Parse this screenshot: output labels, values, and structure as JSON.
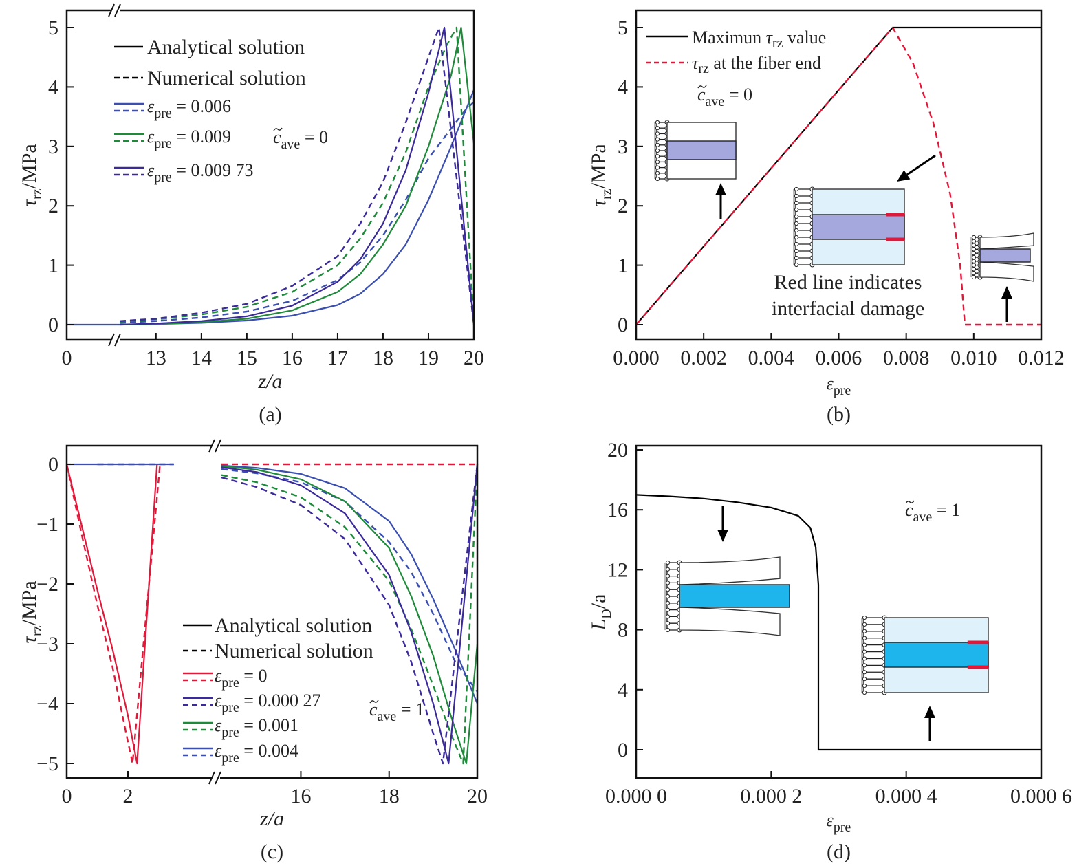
{
  "figure": {
    "panels": [
      "a",
      "b",
      "c",
      "d"
    ]
  },
  "chart_data": [
    {
      "panel": "a",
      "type": "line",
      "caption": "(a)",
      "xlabel": "z/a",
      "ylabel": "τrz/MPa",
      "xlim": [
        0,
        20
      ],
      "x_axis_break": "between 0 and 13",
      "ylim": [
        -0.25,
        5.25
      ],
      "xticks": [
        "0",
        "13",
        "14",
        "15",
        "16",
        "17",
        "18",
        "19",
        "20"
      ],
      "yticks": [
        "0",
        "1",
        "2",
        "3",
        "4",
        "5"
      ],
      "legend_position": "top-left",
      "legend": [
        {
          "label": "Analytical solution",
          "style": "solid",
          "color": "#000000"
        },
        {
          "label": "Numerical solution",
          "style": "dashed",
          "color": "#000000"
        },
        {
          "label": "εpre = 0.006",
          "color": "#3a4fb0"
        },
        {
          "label": "εpre = 0.009",
          "color": "#1f8a3a"
        },
        {
          "label": "εpre = 0.009 73",
          "color": "#3a2a9a"
        }
      ],
      "annotation": "c̃ave = 0",
      "series": [
        {
          "name": "εpre=0.006 analytical",
          "color": "#3a4fb0",
          "style": "solid",
          "x": [
            0,
            12.0,
            12.2,
            13,
            14,
            15,
            16,
            17,
            17.5,
            18,
            18.5,
            19,
            19.5,
            20
          ],
          "y": [
            0,
            0,
            0.0,
            0.01,
            0.03,
            0.07,
            0.15,
            0.33,
            0.52,
            0.85,
            1.35,
            2.1,
            3.0,
            3.95
          ]
        },
        {
          "name": "εpre=0.006 numerical",
          "color": "#3a4fb0",
          "style": "dashed",
          "x": [
            12.2,
            13,
            14,
            15,
            16,
            17,
            17.5,
            18,
            18.5,
            19,
            19.5,
            19.8,
            20
          ],
          "y": [
            0.03,
            0.06,
            0.12,
            0.22,
            0.4,
            0.75,
            1.05,
            1.5,
            2.1,
            2.8,
            3.3,
            3.6,
            3.75
          ]
        },
        {
          "name": "εpre=0.009 analytical",
          "color": "#1f8a3a",
          "style": "solid",
          "x": [
            12.2,
            13,
            14,
            15,
            16,
            17,
            17.5,
            18,
            18.5,
            19,
            19.5,
            19.72,
            20
          ],
          "y": [
            0.0,
            0.01,
            0.04,
            0.1,
            0.24,
            0.55,
            0.85,
            1.35,
            2.0,
            3.0,
            4.2,
            5.0,
            3.05
          ]
        },
        {
          "name": "εpre=0.009 numerical",
          "color": "#1f8a3a",
          "style": "dashed",
          "x": [
            12.2,
            13,
            14,
            15,
            16,
            17,
            17.5,
            18,
            18.5,
            19,
            19.4,
            19.62,
            20
          ],
          "y": [
            0.05,
            0.09,
            0.17,
            0.3,
            0.55,
            1.0,
            1.45,
            2.05,
            2.9,
            4.0,
            4.7,
            5.0,
            0.0
          ]
        },
        {
          "name": "εpre=0.009 73 analytical",
          "color": "#3a2a9a",
          "style": "solid",
          "x": [
            12.2,
            13,
            14,
            15,
            16,
            17,
            17.5,
            18,
            18.5,
            19,
            19.35,
            20
          ],
          "y": [
            0.0,
            0.02,
            0.06,
            0.14,
            0.32,
            0.72,
            1.1,
            1.7,
            2.6,
            3.9,
            5.0,
            0.0
          ]
        },
        {
          "name": "εpre=0.009 73 numerical",
          "color": "#3a2a9a",
          "style": "dashed",
          "x": [
            12.2,
            13,
            14,
            15,
            16,
            17,
            17.5,
            18,
            18.5,
            19,
            19.23,
            20
          ],
          "y": [
            0.06,
            0.1,
            0.2,
            0.35,
            0.65,
            1.15,
            1.7,
            2.4,
            3.4,
            4.5,
            5.0,
            0.0
          ]
        }
      ]
    },
    {
      "panel": "b",
      "type": "line",
      "caption": "(b)",
      "xlabel": "εpre",
      "ylabel": "τrz/MPa",
      "xlim": [
        0,
        0.012
      ],
      "ylim": [
        -0.25,
        5.25
      ],
      "xticks": [
        "0.000",
        "0.002",
        "0.004",
        "0.006",
        "0.008",
        "0.010",
        "0.012"
      ],
      "yticks": [
        "0",
        "1",
        "2",
        "3",
        "4",
        "5"
      ],
      "legend_position": "top-left",
      "legend": [
        {
          "label": "Maximun τrz value",
          "style": "solid",
          "color": "#000000"
        },
        {
          "label": "τrz at the fiber end",
          "style": "dashed",
          "color": "#e0193a"
        }
      ],
      "annotation": "c̃ave = 0",
      "note": "Red line indicates interfacial damage",
      "series": [
        {
          "name": "Maximun τrz value",
          "color": "#000000",
          "style": "solid",
          "x": [
            0,
            0.0076,
            0.012
          ],
          "y": [
            0,
            5,
            5
          ]
        },
        {
          "name": "τrz at the fiber end",
          "color": "#e0193a",
          "style": "dashed",
          "x": [
            0,
            0.0076,
            0.0082,
            0.0088,
            0.0093,
            0.0096,
            0.00973,
            0.00973,
            0.012
          ],
          "y": [
            0,
            5,
            4.4,
            3.4,
            2.2,
            1.0,
            0.05,
            0,
            0
          ]
        }
      ]
    },
    {
      "panel": "c",
      "type": "line",
      "caption": "(c)",
      "xlabel": "z/a",
      "ylabel": "τrz/MPa",
      "xlim": [
        0,
        20
      ],
      "x_axis_break": "between 3.5 and 14",
      "ylim": [
        -5.25,
        0.25
      ],
      "xticks": [
        "0",
        "2",
        "16",
        "18",
        "20"
      ],
      "yticks": [
        "0",
        "−1",
        "−2",
        "−3",
        "−4",
        "−5"
      ],
      "legend_position": "bottom-center",
      "legend": [
        {
          "label": "Analytical solution",
          "style": "solid",
          "color": "#000000"
        },
        {
          "label": "Numerical solution",
          "style": "dashed",
          "color": "#000000"
        },
        {
          "label": "εpre = 0",
          "color": "#e0193a"
        },
        {
          "label": "εpre = 0.000 27",
          "color": "#3a2a9a"
        },
        {
          "label": "εpre = 0.001",
          "color": "#1f8a3a"
        },
        {
          "label": "εpre = 0.004",
          "color": "#3a4fb0"
        }
      ],
      "annotation": "c̃ave = 1",
      "series": [
        {
          "name": "εpre=0 analytical",
          "color": "#e0193a",
          "style": "solid",
          "x": [
            0,
            0.5,
            1.0,
            1.5,
            2.0,
            2.3,
            2.95
          ],
          "y": [
            0,
            -1.05,
            -2.1,
            -3.1,
            -4.2,
            -5.0,
            0
          ]
        },
        {
          "name": "εpre=0 numerical",
          "color": "#e0193a",
          "style": "dashed",
          "x": [
            0,
            0.5,
            1.0,
            1.5,
            1.9,
            2.15,
            3.05,
            20
          ],
          "y": [
            0,
            -1.2,
            -2.35,
            -3.4,
            -4.4,
            -5.0,
            0,
            0
          ]
        },
        {
          "name": "εpre=0.004 analytical",
          "color": "#3a4fb0",
          "style": "solid",
          "x": [
            0,
            3.5,
            14.2,
            15,
            16,
            17,
            18,
            18.5,
            19,
            19.5,
            20
          ],
          "y": [
            0,
            0,
            -0.02,
            -0.06,
            -0.16,
            -0.4,
            -0.95,
            -1.5,
            -2.25,
            -3.1,
            -4.0
          ]
        },
        {
          "name": "εpre=0.004 numerical",
          "color": "#3a4fb0",
          "style": "dashed",
          "x": [
            1.0,
            3.5,
            14.2,
            15,
            16,
            17,
            18,
            18.5,
            19,
            19.5,
            20
          ],
          "y": [
            0,
            0,
            -0.08,
            -0.15,
            -0.3,
            -0.62,
            -1.3,
            -1.8,
            -2.5,
            -3.3,
            -3.8
          ]
        },
        {
          "name": "εpre=0.001 analytical",
          "color": "#1f8a3a",
          "style": "solid",
          "x": [
            14.2,
            15,
            16,
            17,
            18,
            18.5,
            19,
            19.4,
            19.75,
            20
          ],
          "y": [
            -0.03,
            -0.09,
            -0.25,
            -0.62,
            -1.4,
            -2.2,
            -3.2,
            -4.2,
            -5.0,
            -3.0
          ]
        },
        {
          "name": "εpre=0.001 numerical",
          "color": "#1f8a3a",
          "style": "dashed",
          "x": [
            14.2,
            15,
            16,
            17,
            18,
            18.5,
            19,
            19.4,
            19.68,
            20
          ],
          "y": [
            -0.18,
            -0.3,
            -0.55,
            -1.05,
            -1.95,
            -2.75,
            -3.7,
            -4.5,
            -5.0,
            0
          ]
        },
        {
          "name": "εpre=0.000 27 analytical",
          "color": "#3a2a9a",
          "style": "solid",
          "x": [
            14.2,
            15,
            16,
            17,
            18,
            18.5,
            19,
            19.35,
            20
          ],
          "y": [
            -0.05,
            -0.13,
            -0.35,
            -0.82,
            -1.85,
            -2.8,
            -4.0,
            -5.0,
            0
          ]
        },
        {
          "name": "εpre=0.000 27 numerical",
          "color": "#3a2a9a",
          "style": "dashed",
          "x": [
            14.2,
            15,
            16,
            17,
            18,
            18.5,
            19,
            19.22,
            20
          ],
          "y": [
            -0.22,
            -0.38,
            -0.68,
            -1.25,
            -2.35,
            -3.3,
            -4.5,
            -5.0,
            0
          ]
        },
        {
          "name": "εpre=0 right segment",
          "color": "#e0193a",
          "style": "dashed",
          "x": [
            14.2,
            20
          ],
          "y": [
            0,
            0
          ]
        }
      ]
    },
    {
      "panel": "d",
      "type": "line",
      "caption": "(d)",
      "xlabel": "εpre",
      "ylabel": "LD/a",
      "xlim": [
        0,
        0.0006
      ],
      "ylim": [
        -2,
        20
      ],
      "xticks": [
        "0.000 0",
        "0.000 2",
        "0.000 4",
        "0.000 6"
      ],
      "yticks": [
        "0",
        "4",
        "8",
        "12",
        "16",
        "20"
      ],
      "annotation": "c̃ave = 1",
      "series": [
        {
          "name": "LD/a",
          "color": "#000000",
          "style": "solid",
          "x": [
            0,
            5e-05,
            0.0001,
            0.00015,
            0.0002,
            0.00024,
            0.000258,
            0.000266,
            0.00027,
            0.00027,
            0.0006
          ],
          "y": [
            17.0,
            16.9,
            16.75,
            16.5,
            16.15,
            15.6,
            14.8,
            13.5,
            11.0,
            0,
            0
          ]
        }
      ]
    }
  ],
  "insets": {
    "fiber_color_b": "#a4a8dc",
    "matrix_color": "#dff1fb",
    "fiber_color_d": "#1eb4ec",
    "damage_color": "#e0193a"
  },
  "text": {
    "a_cave": "=0",
    "b_note_line1": "Red line indicates",
    "b_note_line2": "interfacial damage"
  }
}
